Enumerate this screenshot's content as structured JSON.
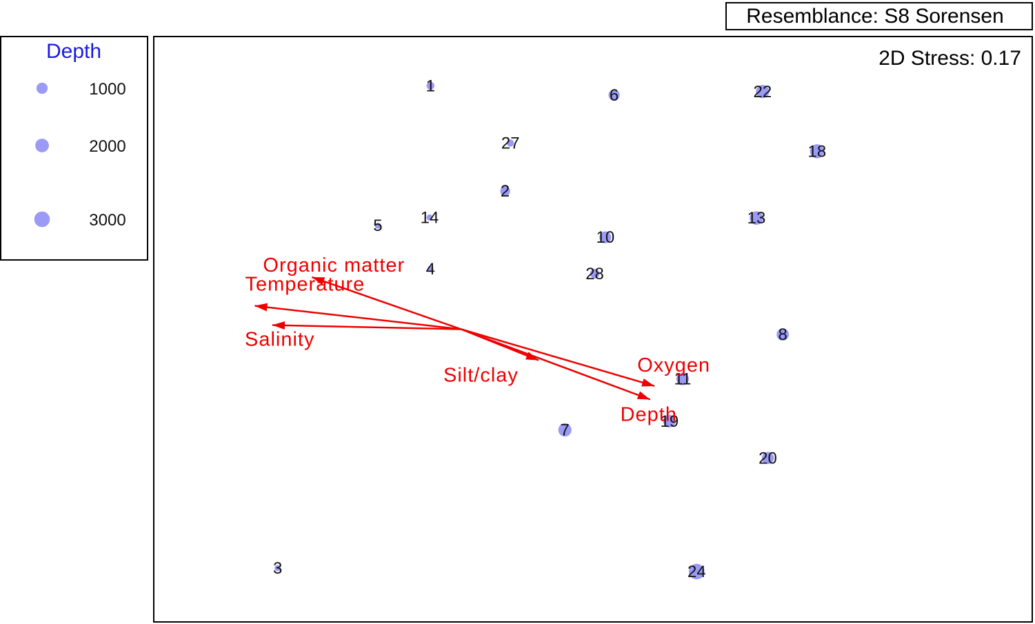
{
  "chart_data": {
    "type": "scatter",
    "subtype": "MDS bubble plot with vector overlay",
    "resemblance_label": "Resemblance: S8 Sorensen",
    "stress_label": "2D Stress: 0.17",
    "x_range": [
      0,
      100
    ],
    "y_range": [
      0,
      100
    ],
    "bubble_color": "#9b9bf5",
    "vector_color": "#ee0000",
    "legend_title_color": "#1a1ae6",
    "legend": {
      "title": "Depth",
      "entries": [
        {
          "label": "1000",
          "depth": 1000
        },
        {
          "label": "2000",
          "depth": 2000
        },
        {
          "label": "3000",
          "depth": 3000
        }
      ]
    },
    "points": [
      {
        "label": "1",
        "x": 31.5,
        "y": 91.6,
        "depth": 200
      },
      {
        "label": "6",
        "x": 52.4,
        "y": 90.0,
        "depth": 1000
      },
      {
        "label": "22",
        "x": 69.3,
        "y": 90.6,
        "depth": 1800
      },
      {
        "label": "18",
        "x": 75.5,
        "y": 80.4,
        "depth": 2200
      },
      {
        "label": "27",
        "x": 40.6,
        "y": 81.8,
        "depth": 100
      },
      {
        "label": "2",
        "x": 40.0,
        "y": 73.6,
        "depth": 600
      },
      {
        "label": "13",
        "x": 68.6,
        "y": 69.0,
        "depth": 1900
      },
      {
        "label": "5",
        "x": 25.5,
        "y": 67.7,
        "depth": 20
      },
      {
        "label": "14",
        "x": 31.4,
        "y": 69.1,
        "depth": 20
      },
      {
        "label": "10",
        "x": 51.4,
        "y": 65.7,
        "depth": 1200
      },
      {
        "label": "4",
        "x": 31.5,
        "y": 60.3,
        "depth": 20
      },
      {
        "label": "28",
        "x": 50.2,
        "y": 59.5,
        "depth": 500
      },
      {
        "label": "8",
        "x": 71.6,
        "y": 49.1,
        "depth": 1400
      },
      {
        "label": "11",
        "x": 60.2,
        "y": 41.5,
        "depth": 1500
      },
      {
        "label": "7",
        "x": 46.8,
        "y": 32.8,
        "depth": 1800
      },
      {
        "label": "19",
        "x": 58.7,
        "y": 34.3,
        "depth": 1500
      },
      {
        "label": "20",
        "x": 69.9,
        "y": 28.0,
        "depth": 1300
      },
      {
        "label": "3",
        "x": 14.1,
        "y": 9.2,
        "depth": 20
      },
      {
        "label": "24",
        "x": 61.8,
        "y": 8.6,
        "depth": 3000
      }
    ],
    "vectors": {
      "origin": [
        35.0,
        50.0
      ],
      "items": [
        {
          "name": "Organic matter",
          "x": -17.0,
          "y": 8.9
        },
        {
          "name": "Temperature",
          "x": -23.5,
          "y": 4.0
        },
        {
          "name": "Salinity",
          "x": -21.5,
          "y": 0.7
        },
        {
          "name": "Silt/clay",
          "x": 8.8,
          "y": -5.3
        },
        {
          "name": "Oxygen",
          "x": 22.0,
          "y": -9.7
        },
        {
          "name": "Depth",
          "x": 21.5,
          "y": -12.0
        }
      ]
    }
  }
}
